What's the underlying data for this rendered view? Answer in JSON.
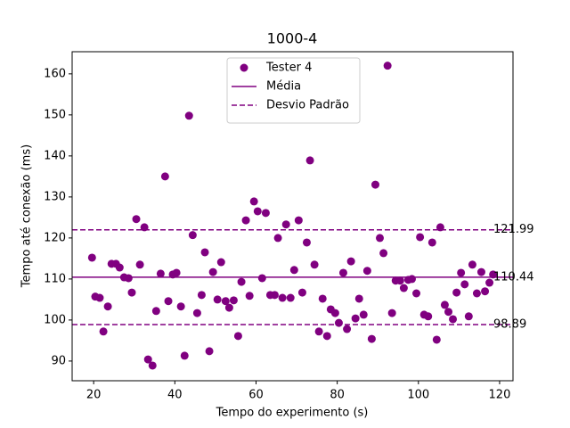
{
  "chart_data": {
    "type": "scatter",
    "title": "1000-4",
    "xlabel": "Tempo do experimento (s)",
    "ylabel": "Tempo até conexão (ms)",
    "xlim": [
      14.7,
      123.3
    ],
    "ylim": [
      85.2,
      165.4
    ],
    "xticks": [
      20,
      40,
      60,
      80,
      100,
      120
    ],
    "yticks": [
      90,
      100,
      110,
      120,
      130,
      140,
      150,
      160
    ],
    "legend": "upper center",
    "series": [
      {
        "name": "Tester 4",
        "color": "#800080",
        "x": [
          19.6,
          20.4,
          21.5,
          22.4,
          23.5,
          24.4,
          25.5,
          26.4,
          27.5,
          28.6,
          29.4,
          30.5,
          31.4,
          32.5,
          33.4,
          34.5,
          35.4,
          36.5,
          37.6,
          38.4,
          39.5,
          40.4,
          41.5,
          42.4,
          43.5,
          44.4,
          45.5,
          46.6,
          47.4,
          48.5,
          49.4,
          50.5,
          51.4,
          52.5,
          53.4,
          54.5,
          55.6,
          56.4,
          57.5,
          58.4,
          59.5,
          60.4,
          61.5,
          62.4,
          63.5,
          64.6,
          65.4,
          66.5,
          67.4,
          68.5,
          69.4,
          70.5,
          71.4,
          72.5,
          73.3,
          74.4,
          75.5,
          76.4,
          77.5,
          78.4,
          79.5,
          80.4,
          81.5,
          82.4,
          83.4,
          84.5,
          85.4,
          86.5,
          87.4,
          88.5,
          89.4,
          90.5,
          91.4,
          92.4,
          93.5,
          94.4,
          95.5,
          96.4,
          97.5,
          98.4,
          99.5,
          100.4,
          101.4,
          102.4,
          103.4,
          104.5,
          105.4,
          106.5,
          107.4,
          108.5,
          109.4,
          110.5,
          111.4,
          112.4,
          113.3,
          114.4,
          115.5,
          116.4,
          117.5,
          118.4
        ],
        "values": [
          115.2,
          105.7,
          105.4,
          97.2,
          103.3,
          113.7,
          113.7,
          112.8,
          110.4,
          110.2,
          106.7,
          124.6,
          113.5,
          122.6,
          90.4,
          88.9,
          102.2,
          111.3,
          135.0,
          104.6,
          111.1,
          111.5,
          103.3,
          91.3,
          149.8,
          120.7,
          101.7,
          106.1,
          116.5,
          92.4,
          111.7,
          105.0,
          114.1,
          104.6,
          103.0,
          104.8,
          96.1,
          109.3,
          124.3,
          105.9,
          128.9,
          126.5,
          110.2,
          126.1,
          106.1,
          106.1,
          120.0,
          105.4,
          123.3,
          105.4,
          112.2,
          124.3,
          106.7,
          118.9,
          138.9,
          113.5,
          97.2,
          105.2,
          96.1,
          102.6,
          101.7,
          99.3,
          111.5,
          97.8,
          114.3,
          100.4,
          105.2,
          101.3,
          112.0,
          95.4,
          133.0,
          120.0,
          116.3,
          162.0,
          101.7,
          109.6,
          109.6,
          107.8,
          109.8,
          110.0,
          106.5,
          120.2,
          101.3,
          100.9,
          118.9,
          95.2,
          122.6,
          103.7,
          102.0,
          100.2,
          106.7,
          111.5,
          108.7,
          100.9,
          113.5,
          106.5,
          111.7,
          107.0,
          109.1,
          111.1
        ]
      }
    ],
    "lines": [
      {
        "name": "Média",
        "color": "#800080",
        "style": "solid",
        "values": [
          110.44
        ]
      },
      {
        "name": "Desvio Padrão",
        "color": "#800080",
        "style": "dashed",
        "values": [
          121.99,
          98.89
        ]
      }
    ]
  }
}
